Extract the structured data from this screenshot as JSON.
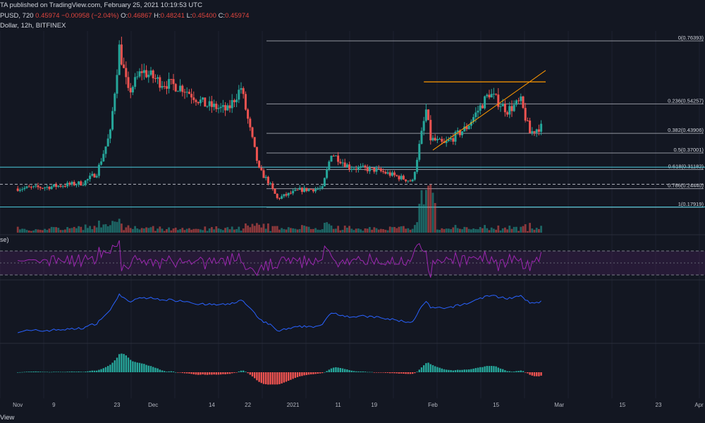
{
  "header": {
    "published": "TA published on TradingView.com, February 25, 2021 10:19:53 UTC",
    "symbol_interval": "PUSD, 720",
    "last_price": "0.45974",
    "change": "−0.00958 (−2.04%)",
    "ohlc": {
      "O": "0.46867",
      "H": "0.48241",
      "L": "0.45400",
      "C": "0.45974"
    },
    "description": "Dollar, 12h, BITFINEX"
  },
  "rsi_label": "se)",
  "footer": "View",
  "colors": {
    "background": "#131722",
    "bull": "#26a69a",
    "bear": "#ef5350",
    "rsi": "#9c27b0",
    "rsi_band": "#4a1f5c",
    "orange": "#ff9800",
    "fib_line": "#b2b5be",
    "hline": "#4dd0e1",
    "obv": "#2962ff"
  },
  "chart_data": {
    "type": "candlestick",
    "x_axis_labels": [
      "Nov",
      "9",
      "23",
      "Dec",
      "14",
      "22",
      "2021",
      "11",
      "19",
      "Feb",
      "15",
      "Mar",
      "15",
      "23",
      "Apr"
    ],
    "price_anchor_points": [
      {
        "date": "2020-11-01",
        "price": 0.245
      },
      {
        "date": "2020-11-08",
        "price": 0.25
      },
      {
        "date": "2020-11-16",
        "price": 0.265
      },
      {
        "date": "2020-11-19",
        "price": 0.3
      },
      {
        "date": "2020-11-22",
        "price": 0.44
      },
      {
        "date": "2020-11-24",
        "price": 0.74
      },
      {
        "date": "2020-11-26",
        "price": 0.58
      },
      {
        "date": "2020-11-29",
        "price": 0.66
      },
      {
        "date": "2020-12-03",
        "price": 0.62
      },
      {
        "date": "2020-12-08",
        "price": 0.6
      },
      {
        "date": "2020-12-13",
        "price": 0.54
      },
      {
        "date": "2020-12-18",
        "price": 0.52
      },
      {
        "date": "2020-12-21",
        "price": 0.6
      },
      {
        "date": "2020-12-23",
        "price": 0.45
      },
      {
        "date": "2020-12-25",
        "price": 0.31
      },
      {
        "date": "2020-12-27",
        "price": 0.27
      },
      {
        "date": "2020-12-29",
        "price": 0.21
      },
      {
        "date": "2021-01-03",
        "price": 0.24
      },
      {
        "date": "2021-01-08",
        "price": 0.245
      },
      {
        "date": "2021-01-10",
        "price": 0.37
      },
      {
        "date": "2021-01-14",
        "price": 0.32
      },
      {
        "date": "2021-01-20",
        "price": 0.31
      },
      {
        "date": "2021-01-24",
        "price": 0.29
      },
      {
        "date": "2021-01-28",
        "price": 0.27
      },
      {
        "date": "2021-01-31",
        "price": 0.52
      },
      {
        "date": "2021-02-01",
        "price": 0.42
      },
      {
        "date": "2021-02-04",
        "price": 0.4
      },
      {
        "date": "2021-02-09",
        "price": 0.46
      },
      {
        "date": "2021-02-14",
        "price": 0.58
      },
      {
        "date": "2021-02-18",
        "price": 0.52
      },
      {
        "date": "2021-02-21",
        "price": 0.55
      },
      {
        "date": "2021-02-23",
        "price": 0.44
      },
      {
        "date": "2021-02-25",
        "price": 0.46
      }
    ],
    "fib_levels": [
      {
        "label": "0(0.76393)",
        "value": 0.76393
      },
      {
        "label": "0.236(0.54257)",
        "value": 0.54257
      },
      {
        "label": "0.382(0.43906)",
        "value": 0.43906
      },
      {
        "label": "0.5(0.37001)",
        "value": 0.37001
      },
      {
        "label": "0.618(0.31182)",
        "value": 0.31182
      },
      {
        "label": "0.786(0.24440)",
        "value": 0.2444
      },
      {
        "label": "1(0.17919)",
        "value": 0.17919
      }
    ],
    "resistance_level": 0.62,
    "horizontal_lines": [
      0.32,
      0.26,
      0.18
    ],
    "trendline": [
      {
        "date": "2021-02-01",
        "price": 0.38
      },
      {
        "date": "2021-02-26",
        "price": 0.66
      }
    ],
    "panes": [
      "price",
      "volume",
      "rsi",
      "obv",
      "macd_histogram"
    ]
  }
}
